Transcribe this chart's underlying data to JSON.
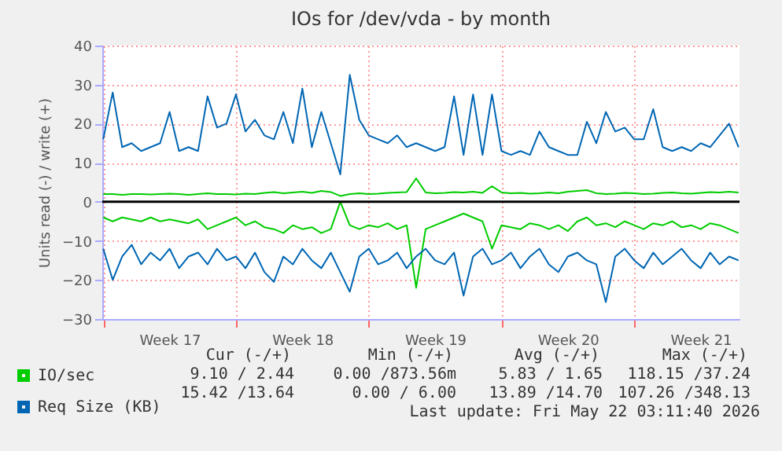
{
  "chart_data": {
    "type": "line",
    "title": "IOs for /dev/vda - by month",
    "ylabel": "Units read (-) / write (+)",
    "categories": [
      null,
      null,
      null,
      null,
      null,
      null,
      null,
      "Week 17",
      null,
      null,
      null,
      null,
      null,
      null,
      null,
      null,
      null,
      null,
      null,
      null,
      null,
      "Week 18",
      null,
      null,
      null,
      null,
      null,
      null,
      null,
      null,
      null,
      null,
      null,
      null,
      null,
      "Week 19",
      null,
      null,
      null,
      null,
      null,
      null,
      null,
      null,
      null,
      null,
      null,
      null,
      null,
      "Week 20",
      null,
      null,
      null,
      null,
      null,
      null,
      null,
      null,
      null,
      null,
      null,
      null,
      null,
      "Week 21",
      null,
      null,
      null,
      null
    ],
    "series": [
      {
        "name": "IO/sec",
        "color": "#00cc00",
        "values": [
          2,
          2,
          1.8,
          2,
          2,
          1.9,
          2,
          2.1,
          2,
          1.8,
          2,
          2.2,
          2,
          2,
          1.9,
          2.1,
          2,
          2.3,
          2.5,
          2.2,
          2.4,
          2.6,
          2.3,
          2.8,
          2.5,
          1.5,
          2,
          2.2,
          2,
          2.1,
          2.3,
          2.4,
          2.5,
          6,
          2.4,
          2.2,
          2.3,
          2.5,
          2.4,
          2.6,
          2.3,
          4,
          2.4,
          2.2,
          2.3,
          2.1,
          2.2,
          2.4,
          2.2,
          2.6,
          2.8,
          3,
          2.2,
          2,
          2.1,
          2.3,
          2.2,
          2,
          2.1,
          2.3,
          2.4,
          2.2,
          2.1,
          2.3,
          2.5,
          2.4,
          2.6,
          2.4
        ]
      },
      {
        "color": "#00cc00",
        "values": [
          -4,
          -5,
          -4,
          -4.5,
          -5,
          -4,
          -5,
          -4.5,
          -5,
          -5.5,
          -4.5,
          -7,
          -6,
          -5,
          -4,
          -6,
          -5,
          -6.5,
          -7,
          -8,
          -6,
          -7,
          -6.5,
          -8,
          -7,
          0,
          -6,
          -7,
          -6,
          -6.5,
          -5.5,
          -7,
          -6,
          -22,
          -7,
          -6,
          -5,
          -4,
          -3,
          -4,
          -5,
          -12,
          -6,
          -6.5,
          -7,
          -5.5,
          -6,
          -7,
          -6,
          -7.5,
          -5,
          -4,
          -6,
          -5.5,
          -6.5,
          -5,
          -6,
          -7,
          -5.5,
          -6,
          -5,
          -6.5,
          -6,
          -7,
          -5.5,
          -6,
          -7,
          -8
        ]
      },
      {
        "name": "Req Size (KB)",
        "color": "#0066b3",
        "values": [
          16,
          28,
          14,
          15,
          13,
          14,
          15,
          23,
          13,
          14,
          13,
          27,
          19,
          20,
          27.5,
          18,
          21,
          17,
          16,
          23,
          15,
          29,
          14,
          23,
          15,
          7,
          32.5,
          21,
          17,
          16,
          15,
          17,
          14,
          15,
          14,
          13,
          14,
          27,
          12,
          27.5,
          12,
          27.5,
          13,
          12,
          13,
          12,
          18,
          14,
          13,
          12,
          12,
          20.5,
          15,
          23,
          18,
          19,
          16,
          16,
          23.7,
          14,
          13,
          14,
          13,
          15,
          14,
          17,
          20,
          14
        ]
      },
      {
        "color": "#0066b3",
        "values": [
          -12,
          -20,
          -14,
          -11,
          -16,
          -13,
          -15,
          -12,
          -17,
          -14,
          -13,
          -16,
          -12,
          -15,
          -14,
          -17,
          -13,
          -18,
          -20.5,
          -14,
          -16,
          -12,
          -15,
          -17,
          -13,
          -18,
          -23,
          -14,
          -12,
          -16,
          -15,
          -13,
          -17,
          -14,
          -12,
          -15,
          -16,
          -13,
          -24,
          -14,
          -12,
          -16,
          -15,
          -13,
          -17,
          -14,
          -12,
          -16,
          -18,
          -14,
          -13,
          -15,
          -16,
          -25.7,
          -14,
          -12,
          -15,
          -17,
          -13,
          -16,
          -14,
          -12,
          -15,
          -17,
          -13,
          -16,
          -14,
          -15
        ]
      }
    ],
    "ylim": [
      -30,
      40
    ],
    "yticks": [
      -30,
      -20,
      -10,
      0,
      10,
      20,
      30,
      40
    ],
    "ref_lines": [
      {
        "axis": "y",
        "value": 0,
        "color": "#000000"
      }
    ],
    "grid": true,
    "legend": "bottom left",
    "marker": "none",
    "line_style": "solid",
    "annotations": [
      "Cur (-/+)",
      "Min (-/+)",
      "Avg (-/+)",
      "Max (-/+)",
      "9.10 / 2.44",
      "0.00 /873.56m",
      "5.83 / 1.65",
      "118.15 /37.24",
      "15.42 /13.64",
      "0.00 / 6.00",
      "13.89 /14.70",
      "107.26 /348.13",
      "Last update: Fri May 22 03:11:40 2026"
    ]
  }
}
